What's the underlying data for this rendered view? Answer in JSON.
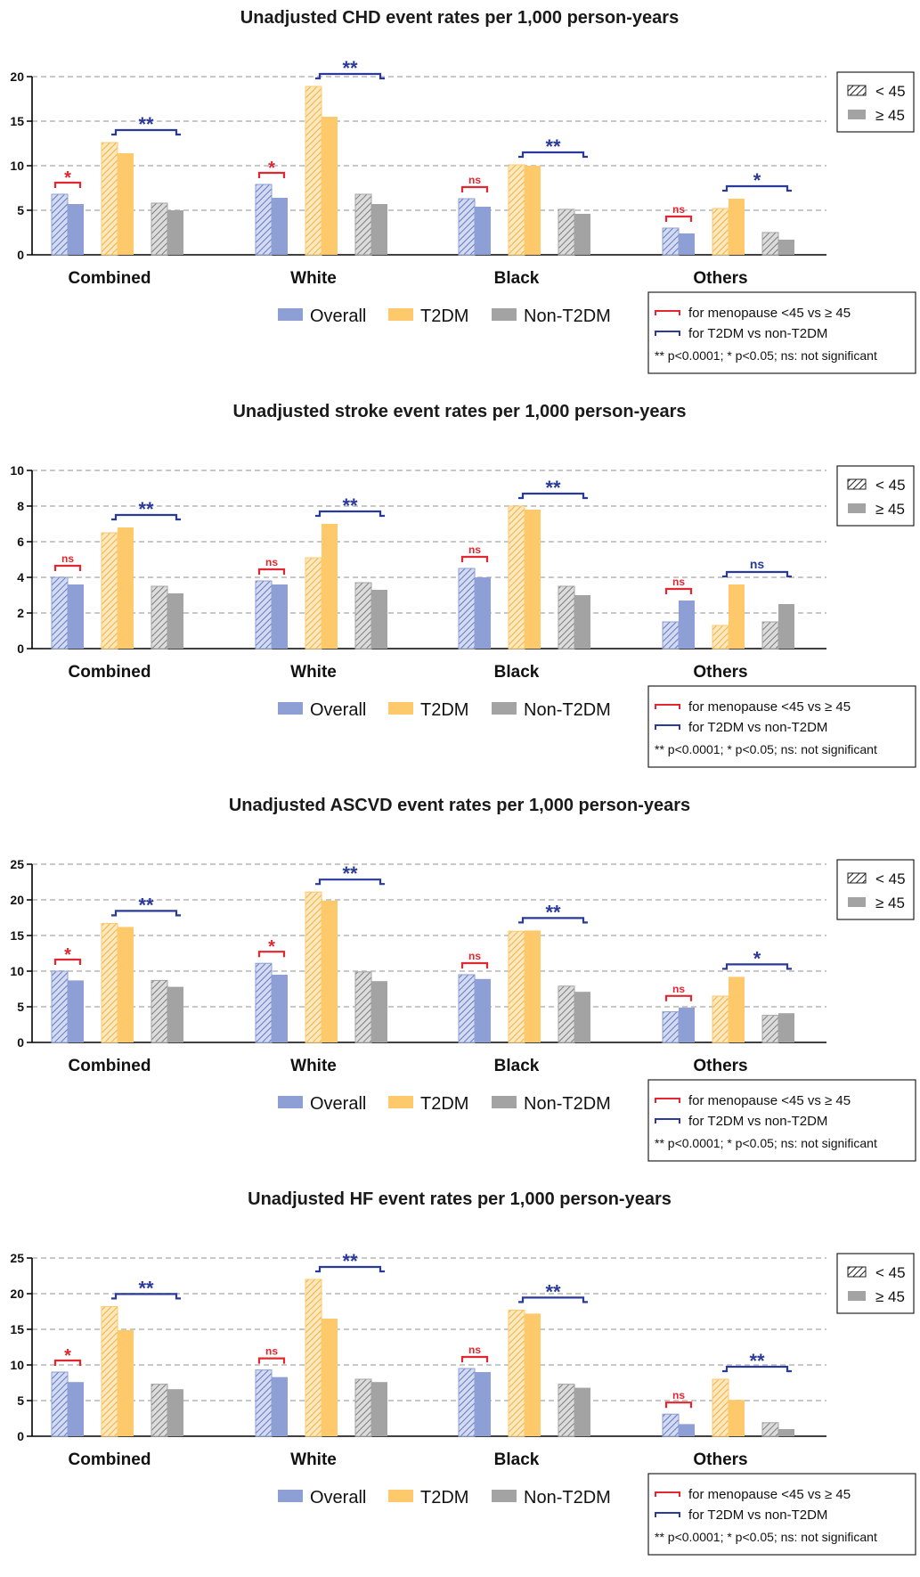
{
  "meta": {
    "legend_groups": {
      "overall": "Overall",
      "t2dm": "T2DM",
      "non_t2dm": "Non-T2DM"
    },
    "legend_age": {
      "early": "< 45",
      "late": "≥ 45"
    },
    "legend_sig": {
      "red_text": "for menopause <45 vs ≥ 45",
      "blue_text": "for T2DM vs non-T2DM",
      "note": "** p<0.0001; * p<0.05; ns: not significant"
    },
    "colors": {
      "overall": "#8e9fd6",
      "overall_dark": "#6678c0",
      "t2dm": "#fec96b",
      "t2dm_dark": "#f2b13f",
      "non_t2dm": "#a3a3a3",
      "non_t2dm_dark": "#7d7d7d",
      "red_bracket": "#e3262f",
      "blue_bracket": "#2a3a9a",
      "grid": "#c8c8c8"
    }
  },
  "chart_data": [
    {
      "type": "bar",
      "title": "Unadjusted CHD event rates per 1,000 person-years",
      "categories": [
        "Combined",
        "White",
        "Black",
        "Others"
      ],
      "ylim": [
        0,
        20
      ],
      "yticks": [
        0,
        5,
        10,
        15,
        20
      ],
      "grid": true,
      "legend_position": "right",
      "series": [
        {
          "name": "Overall",
          "values_lt45": [
            6.8,
            7.9,
            6.3,
            3.0
          ],
          "values_ge45": [
            5.7,
            6.4,
            5.4,
            2.4
          ]
        },
        {
          "name": "T2DM",
          "values_lt45": [
            12.6,
            18.9,
            10.1,
            5.2
          ],
          "values_ge45": [
            11.4,
            15.5,
            10.0,
            6.3
          ]
        },
        {
          "name": "Non-T2DM",
          "values_lt45": [
            5.8,
            6.8,
            5.1,
            2.5
          ],
          "values_ge45": [
            5.0,
            5.7,
            4.6,
            1.7
          ]
        }
      ],
      "significance": {
        "menopause": [
          "*",
          "*",
          "ns",
          "ns"
        ],
        "t2dm_vs_non": [
          "**",
          "**",
          "**",
          "*"
        ]
      }
    },
    {
      "type": "bar",
      "title": "Unadjusted stroke event rates per 1,000 person-years",
      "categories": [
        "Combined",
        "White",
        "Black",
        "Others"
      ],
      "ylim": [
        0,
        10
      ],
      "yticks": [
        0,
        2,
        4,
        6,
        8,
        10
      ],
      "grid": true,
      "legend_position": "right",
      "series": [
        {
          "name": "Overall",
          "values_lt45": [
            4.0,
            3.8,
            4.5,
            1.5
          ],
          "values_ge45": [
            3.6,
            3.6,
            4.0,
            2.7
          ]
        },
        {
          "name": "T2DM",
          "values_lt45": [
            6.5,
            5.1,
            8.0,
            1.3
          ],
          "values_ge45": [
            6.8,
            7.0,
            7.8,
            3.6
          ]
        },
        {
          "name": "Non-T2DM",
          "values_lt45": [
            3.5,
            3.7,
            3.5,
            1.5
          ],
          "values_ge45": [
            3.1,
            3.3,
            3.0,
            2.5
          ]
        }
      ],
      "significance": {
        "menopause": [
          "ns",
          "ns",
          "ns",
          "ns"
        ],
        "t2dm_vs_non": [
          "**",
          "**",
          "**",
          "ns"
        ]
      }
    },
    {
      "type": "bar",
      "title": "Unadjusted ASCVD event rates per 1,000 person-years",
      "categories": [
        "Combined",
        "White",
        "Black",
        "Others"
      ],
      "ylim": [
        0,
        25
      ],
      "yticks": [
        0,
        5,
        10,
        15,
        20,
        25
      ],
      "grid": true,
      "legend_position": "right",
      "series": [
        {
          "name": "Overall",
          "values_lt45": [
            10.0,
            11.1,
            9.5,
            4.3
          ],
          "values_ge45": [
            8.7,
            9.5,
            8.9,
            4.9
          ]
        },
        {
          "name": "T2DM",
          "values_lt45": [
            16.7,
            21.1,
            15.6,
            6.5
          ],
          "values_ge45": [
            16.2,
            19.9,
            15.7,
            9.2
          ]
        },
        {
          "name": "Non-T2DM",
          "values_lt45": [
            8.7,
            9.9,
            7.9,
            3.8
          ],
          "values_ge45": [
            7.8,
            8.6,
            7.1,
            4.1
          ]
        }
      ],
      "significance": {
        "menopause": [
          "*",
          "*",
          "ns",
          "ns"
        ],
        "t2dm_vs_non": [
          "**",
          "**",
          "**",
          "*"
        ]
      }
    },
    {
      "type": "bar",
      "title": "Unadjusted HF event rates per 1,000 person-years",
      "categories": [
        "Combined",
        "White",
        "Black",
        "Others"
      ],
      "ylim": [
        0,
        25
      ],
      "yticks": [
        0,
        5,
        10,
        15,
        20,
        25
      ],
      "grid": true,
      "legend_position": "right",
      "series": [
        {
          "name": "Overall",
          "values_lt45": [
            9.0,
            9.3,
            9.5,
            3.1
          ],
          "values_ge45": [
            7.6,
            8.3,
            9.0,
            1.7
          ]
        },
        {
          "name": "T2DM",
          "values_lt45": [
            18.2,
            22.0,
            17.7,
            8.0
          ],
          "values_ge45": [
            14.9,
            16.5,
            17.2,
            5.1
          ]
        },
        {
          "name": "Non-T2DM",
          "values_lt45": [
            7.3,
            8.0,
            7.3,
            1.9
          ],
          "values_ge45": [
            6.6,
            7.6,
            6.8,
            1.0
          ]
        }
      ],
      "significance": {
        "menopause": [
          "*",
          "ns",
          "ns",
          "ns"
        ],
        "t2dm_vs_non": [
          "**",
          "**",
          "**",
          "**"
        ]
      }
    }
  ]
}
